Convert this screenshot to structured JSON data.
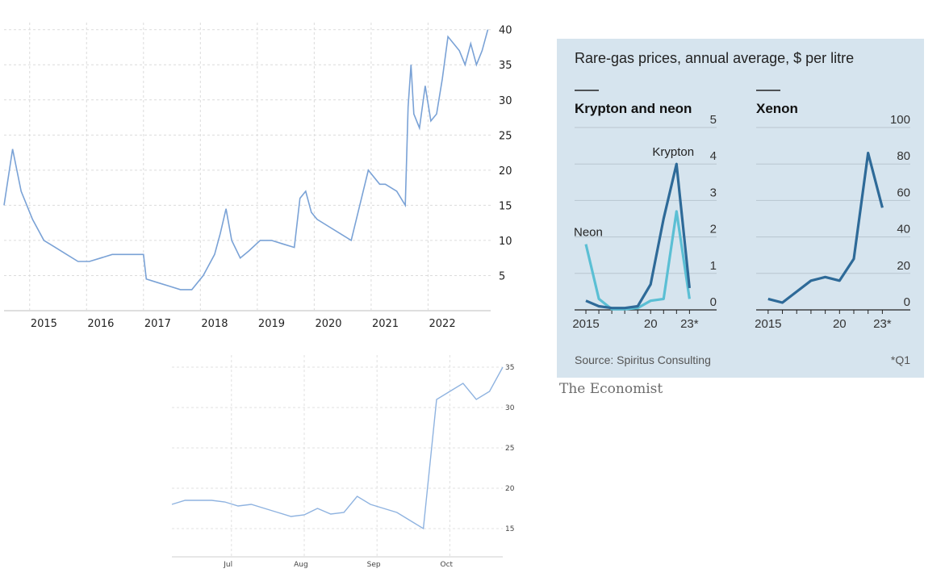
{
  "chart_data": [
    {
      "type": "line",
      "title": "",
      "x_ticks": [
        "2015",
        "2016",
        "2017",
        "2018",
        "2019",
        "2020",
        "2021",
        "2022"
      ],
      "y_ticks": [
        5,
        10,
        15,
        20,
        25,
        30,
        35,
        40
      ],
      "ylim": [
        0,
        41
      ],
      "color": "#7aa2d6",
      "x": [
        2014.3,
        2014.45,
        2014.6,
        2014.8,
        2015.0,
        2015.2,
        2015.4,
        2015.6,
        2015.8,
        2016.0,
        2016.2,
        2016.4,
        2016.6,
        2016.75,
        2016.8,
        2017.0,
        2017.2,
        2017.4,
        2017.6,
        2017.8,
        2018.0,
        2018.1,
        2018.2,
        2018.3,
        2018.45,
        2018.6,
        2018.8,
        2019.0,
        2019.2,
        2019.4,
        2019.5,
        2019.6,
        2019.7,
        2019.8,
        2020.0,
        2020.2,
        2020.4,
        2020.55,
        2020.7,
        2020.9,
        2021.0,
        2021.2,
        2021.35,
        2021.4,
        2021.45,
        2021.5,
        2021.6,
        2021.7,
        2021.8,
        2021.9,
        2022.0,
        2022.1,
        2022.2,
        2022.3,
        2022.4,
        2022.5,
        2022.6,
        2022.7,
        2022.8
      ],
      "y": [
        15,
        23,
        17,
        13,
        10,
        9,
        8,
        7,
        7,
        7.5,
        8,
        8,
        8,
        8,
        4.5,
        4,
        3.5,
        3,
        3,
        5,
        8,
        11,
        14.5,
        10,
        7.5,
        8.5,
        10,
        10,
        9.5,
        9,
        16,
        17,
        14,
        13,
        12,
        11,
        10,
        15,
        20,
        18,
        18,
        17,
        15,
        29,
        35,
        28,
        26,
        32,
        27,
        28,
        33,
        39,
        38,
        37,
        35,
        38,
        35,
        37,
        40
      ]
    },
    {
      "type": "line",
      "title": "",
      "x_ticks": [
        "Jul",
        "Aug",
        "Sep",
        "Oct"
      ],
      "y_ticks": [
        15,
        20,
        25,
        30,
        35
      ],
      "ylim": [
        11.5,
        36.5
      ],
      "color": "#8fb3e0",
      "x": [
        0,
        4,
        8,
        12,
        16,
        20,
        24,
        28,
        32,
        36,
        40,
        44,
        48,
        52,
        56,
        60,
        64,
        68,
        72,
        76,
        80,
        84,
        88,
        92,
        96,
        100
      ],
      "y": [
        18,
        18.5,
        18.5,
        18.5,
        18.3,
        17.8,
        18,
        17.5,
        17,
        16.5,
        16.7,
        17.5,
        16.8,
        17,
        19,
        18,
        17.5,
        17,
        16,
        15,
        31,
        32,
        33,
        31,
        32,
        35
      ]
    },
    {
      "type": "line",
      "title": "Rare-gas prices, annual average, $ per litre",
      "source": "Source: Spiritus Consulting",
      "footnote": "*Q1",
      "brand": "The Economist",
      "panels": [
        {
          "title": "Krypton and neon",
          "y_ticks": [
            0,
            1,
            2,
            3,
            4,
            5
          ],
          "ylim": [
            0,
            5
          ],
          "x_ticks": [
            "2015",
            "20",
            "23*"
          ],
          "x": [
            2015,
            2016,
            2017,
            2018,
            2019,
            2020,
            2021,
            2022,
            2023
          ],
          "series": [
            {
              "name": "Krypton",
              "color": "#2e6a98",
              "values": [
                0.25,
                0.1,
                0.05,
                0.05,
                0.1,
                0.7,
                2.5,
                4.0,
                0.6
              ]
            },
            {
              "name": "Neon",
              "color": "#5bbfd4",
              "values": [
                1.8,
                0.3,
                0.02,
                0.02,
                0.05,
                0.25,
                0.3,
                2.7,
                0.3
              ]
            }
          ]
        },
        {
          "title": "Xenon",
          "y_ticks": [
            0,
            20,
            40,
            60,
            80,
            100
          ],
          "ylim": [
            0,
            100
          ],
          "x_ticks": [
            "2015",
            "20",
            "23*"
          ],
          "x": [
            2015,
            2016,
            2017,
            2018,
            2019,
            2020,
            2021,
            2022,
            2023
          ],
          "series": [
            {
              "name": "",
              "color": "#2e6a98",
              "values": [
                6,
                4,
                10,
                16,
                18,
                16,
                28,
                86,
                56
              ]
            }
          ]
        }
      ]
    }
  ]
}
